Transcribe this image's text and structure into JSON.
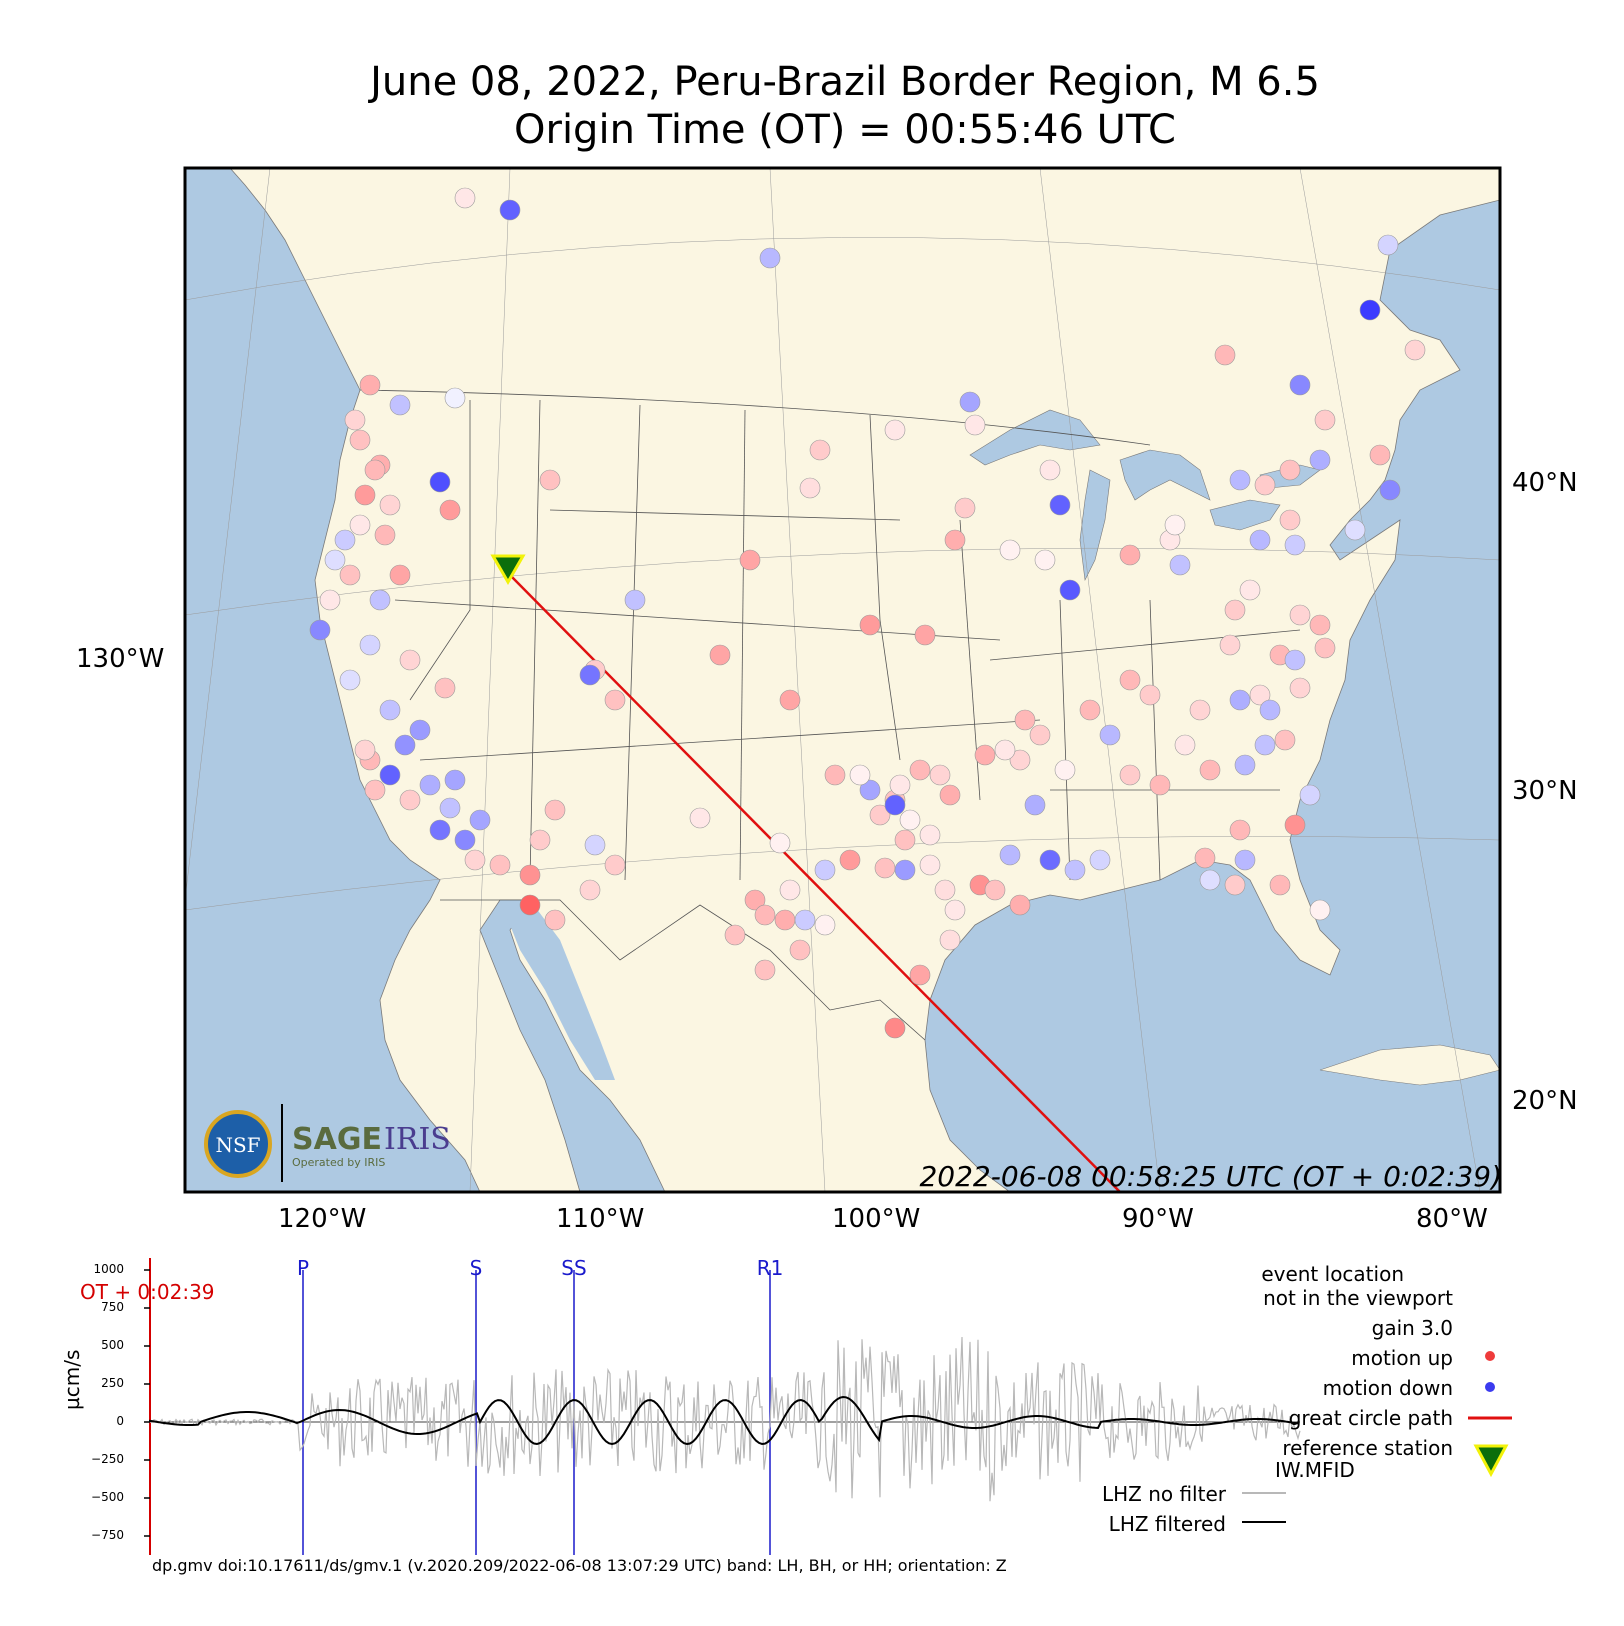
{
  "title": {
    "line1": "June 08, 2022, Peru-Brazil Border Region, M 6.5",
    "line2": "Origin Time (OT) = 00:55:46 UTC"
  },
  "map": {
    "lon_labels": [
      "120°W",
      "110°W",
      "100°W",
      "90°W",
      "80°W"
    ],
    "lat_labels": [
      "40°N",
      "30°N",
      "20°N"
    ],
    "left_label": "130°W",
    "timestamp": "2022-06-08 00:58:25 UTC (OT + 0:02:39)",
    "colors": {
      "ocean": "#aec9e2",
      "land": "#fbf6e2",
      "border": "#555555",
      "motion_up": "#ef3b3b",
      "motion_down": "#3b3bef",
      "great_circle": "#e01010",
      "reference_station": "#0b6e0b",
      "reference_station_edge": "#f2f20a"
    },
    "logos": {
      "nsf": "NSF",
      "sage": "SAGE",
      "iris": "IRIS",
      "operated": "Operated by IRIS"
    }
  },
  "seismogram": {
    "ot_label": "OT + 0:02:39",
    "ylabel": "µcm/s",
    "yticks": [
      "1000",
      "750",
      "500",
      "250",
      "0",
      "−250",
      "−500",
      "−750"
    ],
    "phases": [
      "P",
      "S",
      "SS",
      "R1"
    ]
  },
  "legend": {
    "event_location": "event location",
    "not_in_viewport": "not in the viewport",
    "gain": "gain  3.0",
    "motion_up": "motion up",
    "motion_down": "motion down",
    "great_circle": "great circle path",
    "reference_station": "reference station",
    "station_code": "IW.MFID",
    "no_filter": "LHZ no filter",
    "filtered": "LHZ filtered"
  },
  "footer": "dp.gmv doi:10.17611/ds/gmv.1 (v.2020.209/2022-06-08 13:07:29 UTC) band: LH, BH, or HH; orientation: Z"
}
